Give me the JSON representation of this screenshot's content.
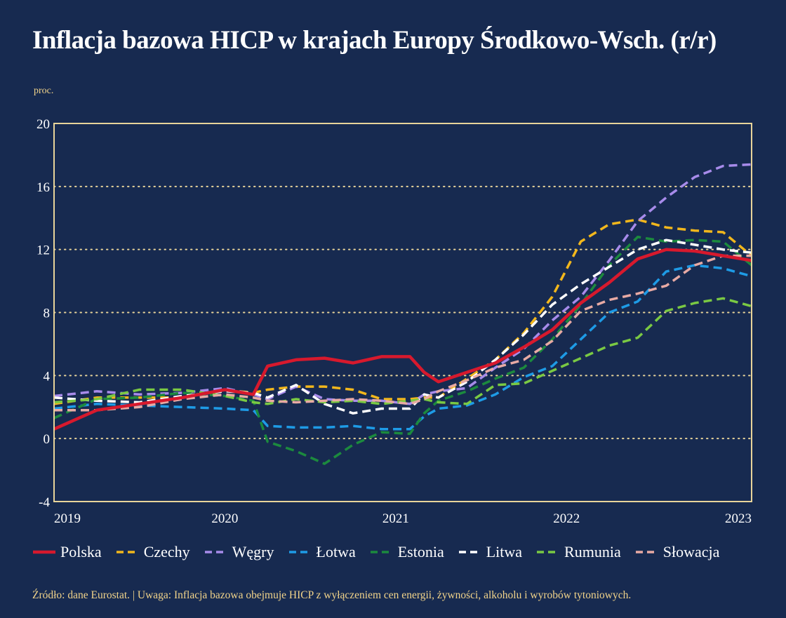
{
  "title": "Inflacja bazowa HICP w krajach Europy Środkowo-Wsch. (r/r)",
  "unit_label": "proc.",
  "source_note": "Źródło: dane Eurostat. | Uwaga: Inflacja bazowa obejmuje HICP z wyłączeniem cen energii, żywności, alkoholu i wyrobów tytoniowych.",
  "colors": {
    "background": "#172a50",
    "frame": "#e8d49a",
    "grid": "#e8d49a",
    "Polska": "#d7192d",
    "Czechy": "#f2b71c",
    "Węgry": "#a78bea",
    "Łotwa": "#1e9be6",
    "Estonia": "#1c8a3e",
    "Litwa": "#ffffff",
    "Rumunia": "#7ac943",
    "Słowacja": "#e8aaa4"
  },
  "chart_data": {
    "type": "line",
    "title": "Inflacja bazowa HICP w krajach Europy Środkowo-Wsch. (r/r)",
    "ylabel": "proc.",
    "xlabel": "",
    "ylim": [
      -4,
      20
    ],
    "yticks": [
      -4,
      0,
      4,
      8,
      12,
      16,
      20
    ],
    "xlim": [
      "2019-01",
      "2023-02"
    ],
    "xticks": [
      "2019",
      "2020",
      "2021",
      "2022",
      "2023"
    ],
    "grid": "horizontal dotted",
    "legend_position": "bottom",
    "x": [
      "2019-01",
      "2019-04",
      "2019-07",
      "2019-10",
      "2020-01",
      "2020-03",
      "2020-04",
      "2020-06",
      "2020-08",
      "2020-10",
      "2020-12",
      "2021-02",
      "2021-03",
      "2021-04",
      "2021-06",
      "2021-08",
      "2021-10",
      "2021-12",
      "2022-02",
      "2022-04",
      "2022-06",
      "2022-08",
      "2022-10",
      "2022-12",
      "2023-02"
    ],
    "series": [
      {
        "name": "Polska",
        "style": "solid",
        "values": [
          0.6,
          1.8,
          2.2,
          2.6,
          3.1,
          2.8,
          4.6,
          5.0,
          5.1,
          4.8,
          5.2,
          5.2,
          4.2,
          3.6,
          4.2,
          4.8,
          5.8,
          6.9,
          8.6,
          9.9,
          11.4,
          12.0,
          11.9,
          11.6,
          11.3
        ]
      },
      {
        "name": "Czechy",
        "style": "dashed",
        "values": [
          2.2,
          2.6,
          2.6,
          2.6,
          3.1,
          2.9,
          3.1,
          3.3,
          3.3,
          3.1,
          2.5,
          2.5,
          2.6,
          2.6,
          3.8,
          5.0,
          6.7,
          9.0,
          12.5,
          13.6,
          13.9,
          13.4,
          13.2,
          13.1,
          11.6
        ]
      },
      {
        "name": "Węgry",
        "style": "dashed",
        "values": [
          2.7,
          3.0,
          2.8,
          2.9,
          3.2,
          2.8,
          2.5,
          3.3,
          2.5,
          2.4,
          2.4,
          2.2,
          2.8,
          3.0,
          3.2,
          4.5,
          5.7,
          7.5,
          9.0,
          11.3,
          13.8,
          15.3,
          16.6,
          17.3,
          17.4
        ]
      },
      {
        "name": "Łotwa",
        "style": "dashed",
        "values": [
          1.9,
          2.2,
          2.1,
          2.0,
          1.9,
          1.8,
          0.8,
          0.7,
          0.7,
          0.8,
          0.6,
          0.6,
          1.4,
          1.9,
          2.1,
          2.8,
          3.9,
          4.6,
          6.3,
          8.0,
          8.7,
          10.6,
          11.0,
          10.8,
          10.3
        ]
      },
      {
        "name": "Estonia",
        "style": "dashed",
        "values": [
          1.3,
          2.5,
          2.6,
          2.9,
          2.7,
          2.4,
          -0.2,
          -0.8,
          -1.6,
          -0.4,
          0.4,
          0.3,
          1.6,
          2.4,
          3.0,
          3.8,
          4.5,
          6.3,
          8.5,
          11.0,
          12.8,
          12.5,
          12.6,
          12.5,
          11.0
        ]
      },
      {
        "name": "Litwa",
        "style": "dashed",
        "values": [
          2.6,
          2.4,
          2.3,
          2.7,
          3.0,
          2.9,
          2.6,
          3.4,
          2.2,
          1.6,
          1.9,
          1.9,
          2.8,
          2.6,
          3.6,
          5.0,
          6.6,
          8.5,
          9.8,
          10.9,
          12.0,
          12.6,
          12.3,
          12.0,
          11.8
        ]
      },
      {
        "name": "Rumunia",
        "style": "dashed",
        "values": [
          2.3,
          2.5,
          3.1,
          3.1,
          2.7,
          2.3,
          2.2,
          2.5,
          2.3,
          2.4,
          2.2,
          2.4,
          2.5,
          2.3,
          2.2,
          3.4,
          3.5,
          4.3,
          5.1,
          5.9,
          6.4,
          8.1,
          8.6,
          8.9,
          8.4
        ]
      },
      {
        "name": "Słowacja",
        "style": "dashed",
        "values": [
          1.8,
          1.8,
          2.0,
          2.5,
          2.8,
          2.6,
          2.4,
          2.3,
          2.4,
          2.5,
          2.4,
          2.2,
          2.5,
          3.0,
          3.7,
          4.5,
          5.0,
          6.2,
          8.1,
          8.8,
          9.2,
          9.7,
          11.0,
          11.6,
          11.6
        ]
      }
    ]
  }
}
